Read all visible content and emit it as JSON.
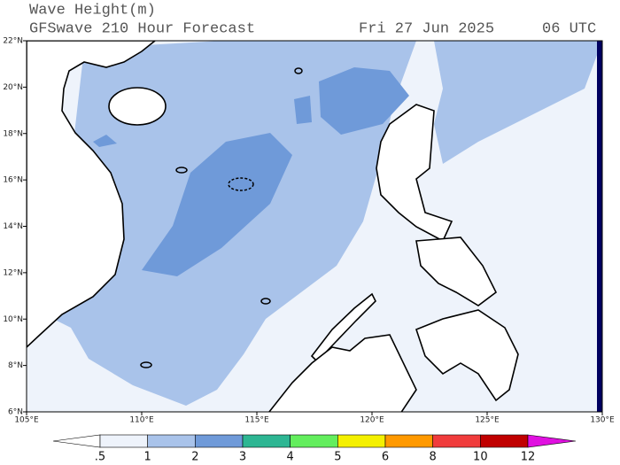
{
  "header": {
    "title": "Wave Height(m)",
    "subtitle": "GFSwave 210 Hour Forecast",
    "date": "Fri 27 Jun 2025",
    "time": "06 UTC"
  },
  "map": {
    "xlim": [
      105,
      130
    ],
    "ylim": [
      6,
      22
    ],
    "xticks": [
      {
        "value": 105,
        "label": "105°E"
      },
      {
        "value": 110,
        "label": "110°E"
      },
      {
        "value": 115,
        "label": "115°E"
      },
      {
        "value": 120,
        "label": "120°E"
      },
      {
        "value": 125,
        "label": "125°E"
      },
      {
        "value": 130,
        "label": "130°E"
      }
    ],
    "yticks": [
      {
        "value": 6,
        "label": "6°N"
      },
      {
        "value": 8,
        "label": "8°N"
      },
      {
        "value": 10,
        "label": "10°N"
      },
      {
        "value": 12,
        "label": "12°N"
      },
      {
        "value": 14,
        "label": "14°N"
      },
      {
        "value": 16,
        "label": "16°N"
      },
      {
        "value": 18,
        "label": "18°N"
      },
      {
        "value": 20,
        "label": "20°N"
      },
      {
        "value": 22,
        "label": "22°N"
      }
    ]
  },
  "colorbar": {
    "levels": [
      {
        "value": 0.5,
        "label": ".5"
      },
      1,
      2,
      3,
      4,
      5,
      6,
      8,
      10,
      12
    ],
    "colors": [
      "#ffffff",
      "#eef3fb",
      "#a9c3ea",
      "#6f9ad9",
      "#2db693",
      "#63ee5d",
      "#f4f000",
      "#ff9900",
      "#f03c3c",
      "#c00000",
      "#e010e0"
    ]
  }
}
